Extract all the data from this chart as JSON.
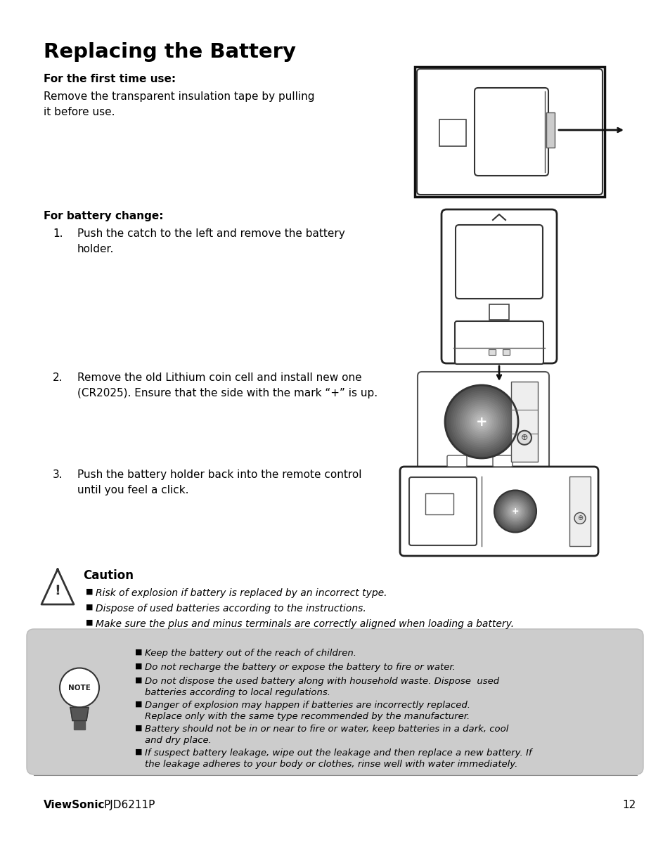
{
  "bg_color": "#ffffff",
  "title": "Replacing the Battery",
  "subtitle": "For the first time use:",
  "body1": "Remove the transparent insulation tape by pulling\nit before use.",
  "subtitle2": "For battery change:",
  "step1_num": "1.",
  "step1_text": "Push the catch to the left and remove the battery\nholder.",
  "step2_num": "2.",
  "step2_text": "Remove the old Lithium coin cell and install new one\n(CR2025). Ensure that the side with the mark “+” is up.",
  "step3_num": "3.",
  "step3_text": "Push the battery holder back into the remote control\nuntil you feel a click.",
  "caution_title": "Caution",
  "caution_bullets": [
    "Risk of explosion if battery is replaced by an incorrect type.",
    "Dispose of used batteries according to the instructions.",
    "Make sure the plus and minus terminals are correctly aligned when loading a battery."
  ],
  "note_bullets": [
    "Keep the battery out of the reach of children.",
    "Do not recharge the battery or expose the battery to fire or water.",
    "Do not dispose the used battery along with household waste. Dispose  used\nbatteries according to local regulations.",
    "Danger of explosion may happen if batteries are incorrectly replaced.\nReplace only with the same type recommended by the manufacturer.",
    "Battery should not be in or near to fire or water, keep batteries in a dark, cool\nand dry place.",
    "If suspect battery leakage, wipe out the leakage and then replace a new battery. If\nthe leakage adheres to your body or clothes, rinse well with water immediately."
  ],
  "footer_brand": "ViewSonic",
  "footer_model": "PJD6211P",
  "footer_page": "12",
  "text_color": "#000000",
  "note_bg_color": "#cccccc"
}
